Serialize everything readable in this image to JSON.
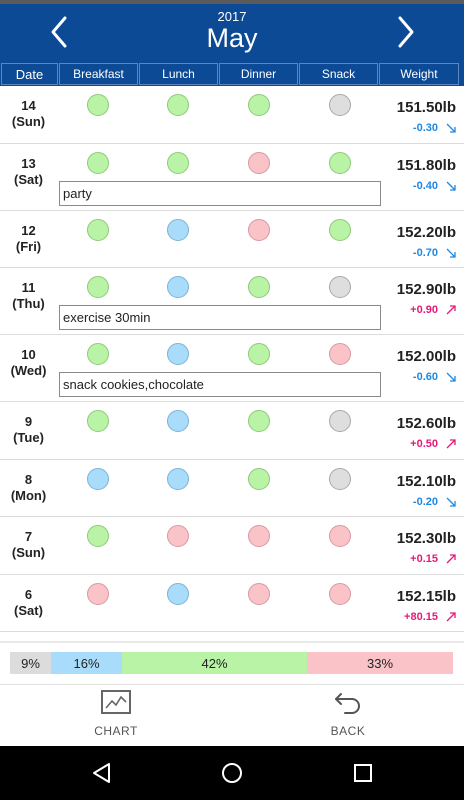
{
  "header": {
    "year": "2017",
    "month": "May"
  },
  "columns": {
    "date": "Date",
    "breakfast": "Breakfast",
    "lunch": "Lunch",
    "dinner": "Dinner",
    "snack": "Snack",
    "weight": "Weight"
  },
  "rows": [
    {
      "day": "14",
      "weekday": "(Sun)",
      "meals": [
        "green",
        "green",
        "green",
        "gray"
      ],
      "weight": "151.50lb",
      "delta": "-0.30",
      "trend": "down",
      "note": ""
    },
    {
      "day": "13",
      "weekday": "(Sat)",
      "meals": [
        "green",
        "green",
        "pink",
        "green"
      ],
      "weight": "151.80lb",
      "delta": "-0.40",
      "trend": "down",
      "note": "party"
    },
    {
      "day": "12",
      "weekday": "(Fri)",
      "meals": [
        "green",
        "blue",
        "pink",
        "green"
      ],
      "weight": "152.20lb",
      "delta": "-0.70",
      "trend": "down",
      "note": ""
    },
    {
      "day": "11",
      "weekday": "(Thu)",
      "meals": [
        "green",
        "blue",
        "green",
        "gray"
      ],
      "weight": "152.90lb",
      "delta": "+0.90",
      "trend": "up",
      "note": "exercise 30min"
    },
    {
      "day": "10",
      "weekday": "(Wed)",
      "meals": [
        "green",
        "blue",
        "green",
        "pink"
      ],
      "weight": "152.00lb",
      "delta": "-0.60",
      "trend": "down",
      "note": "snack cookies,chocolate"
    },
    {
      "day": "9",
      "weekday": "(Tue)",
      "meals": [
        "green",
        "blue",
        "green",
        "gray"
      ],
      "weight": "152.60lb",
      "delta": "+0.50",
      "trend": "up",
      "note": ""
    },
    {
      "day": "8",
      "weekday": "(Mon)",
      "meals": [
        "blue",
        "blue",
        "green",
        "gray"
      ],
      "weight": "152.10lb",
      "delta": "-0.20",
      "trend": "down",
      "note": ""
    },
    {
      "day": "7",
      "weekday": "(Sun)",
      "meals": [
        "green",
        "pink",
        "pink",
        "pink"
      ],
      "weight": "152.30lb",
      "delta": "+0.15",
      "trend": "up",
      "note": ""
    },
    {
      "day": "6",
      "weekday": "(Sat)",
      "meals": [
        "pink",
        "blue",
        "pink",
        "pink"
      ],
      "weight": "152.15lb",
      "delta": "+80.15",
      "trend": "up",
      "note": ""
    }
  ],
  "ratio": {
    "gray": "9%",
    "blue": "16%",
    "green": "42%",
    "pink": "33%"
  },
  "footer": {
    "chart_label": "CHART",
    "back_label": "BACK"
  },
  "icons": {
    "prev": "chevron-left-icon",
    "next": "chevron-right-icon",
    "chart": "chart-icon",
    "back": "back-arrow-icon"
  },
  "colors": {
    "header": "#0d4a96",
    "green": "#b9f3a5",
    "blue": "#a9dcfb",
    "pink": "#fac3c7",
    "gray": "#dedede",
    "down": "#1e88e5",
    "up": "#e6197a"
  }
}
